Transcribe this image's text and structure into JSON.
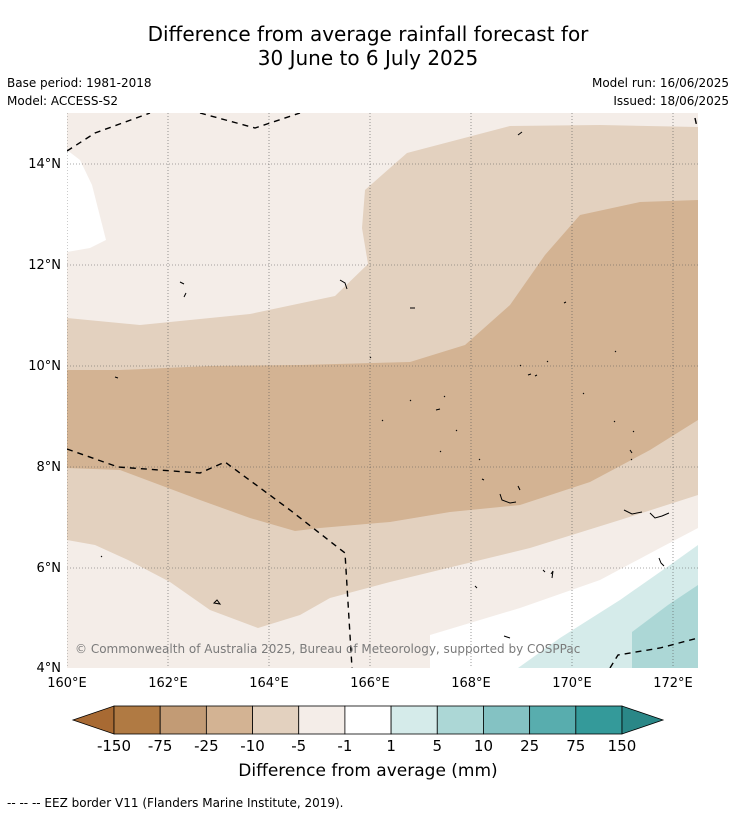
{
  "title_line1": "Difference from average rainfall forecast for",
  "title_line2": "30 June to 6 July 2025",
  "base_period": "Base period: 1981-2018",
  "model": "Model: ACCESS-S2",
  "model_run": "Model run: 16/06/2025",
  "issued": "Issued: 18/06/2025",
  "copyright": "© Commonwealth of Australia 2025, Bureau of Meteorology, supported by COSPPac",
  "map": {
    "lat_labels": [
      "4°N",
      "6°N",
      "8°N",
      "10°N",
      "12°N",
      "14°N"
    ],
    "lon_labels": [
      "160°E",
      "162°E",
      "164°E",
      "166°E",
      "168°E",
      "170°E",
      "172°E"
    ],
    "lat_range": [
      4,
      15
    ],
    "lon_range": [
      160,
      172.5
    ]
  },
  "legend": {
    "title": "Difference from average (mm)",
    "tick_labels": [
      "-150",
      "-75",
      "-25",
      "-10",
      "-5",
      "-1",
      "1",
      "5",
      "10",
      "25",
      "75",
      "150"
    ],
    "colors": [
      "#a86a33",
      "#b07a43",
      "#c29b75",
      "#d3b393",
      "#e3d1bf",
      "#f4ede8",
      "#ffffff",
      "#d5ebea",
      "#acd7d6",
      "#84c2c3",
      "#58adae",
      "#349a9a",
      "#2a8787"
    ]
  },
  "footer_note": "--  --  -- EEZ border V11 (Flanders Marine Institute, 2019)."
}
